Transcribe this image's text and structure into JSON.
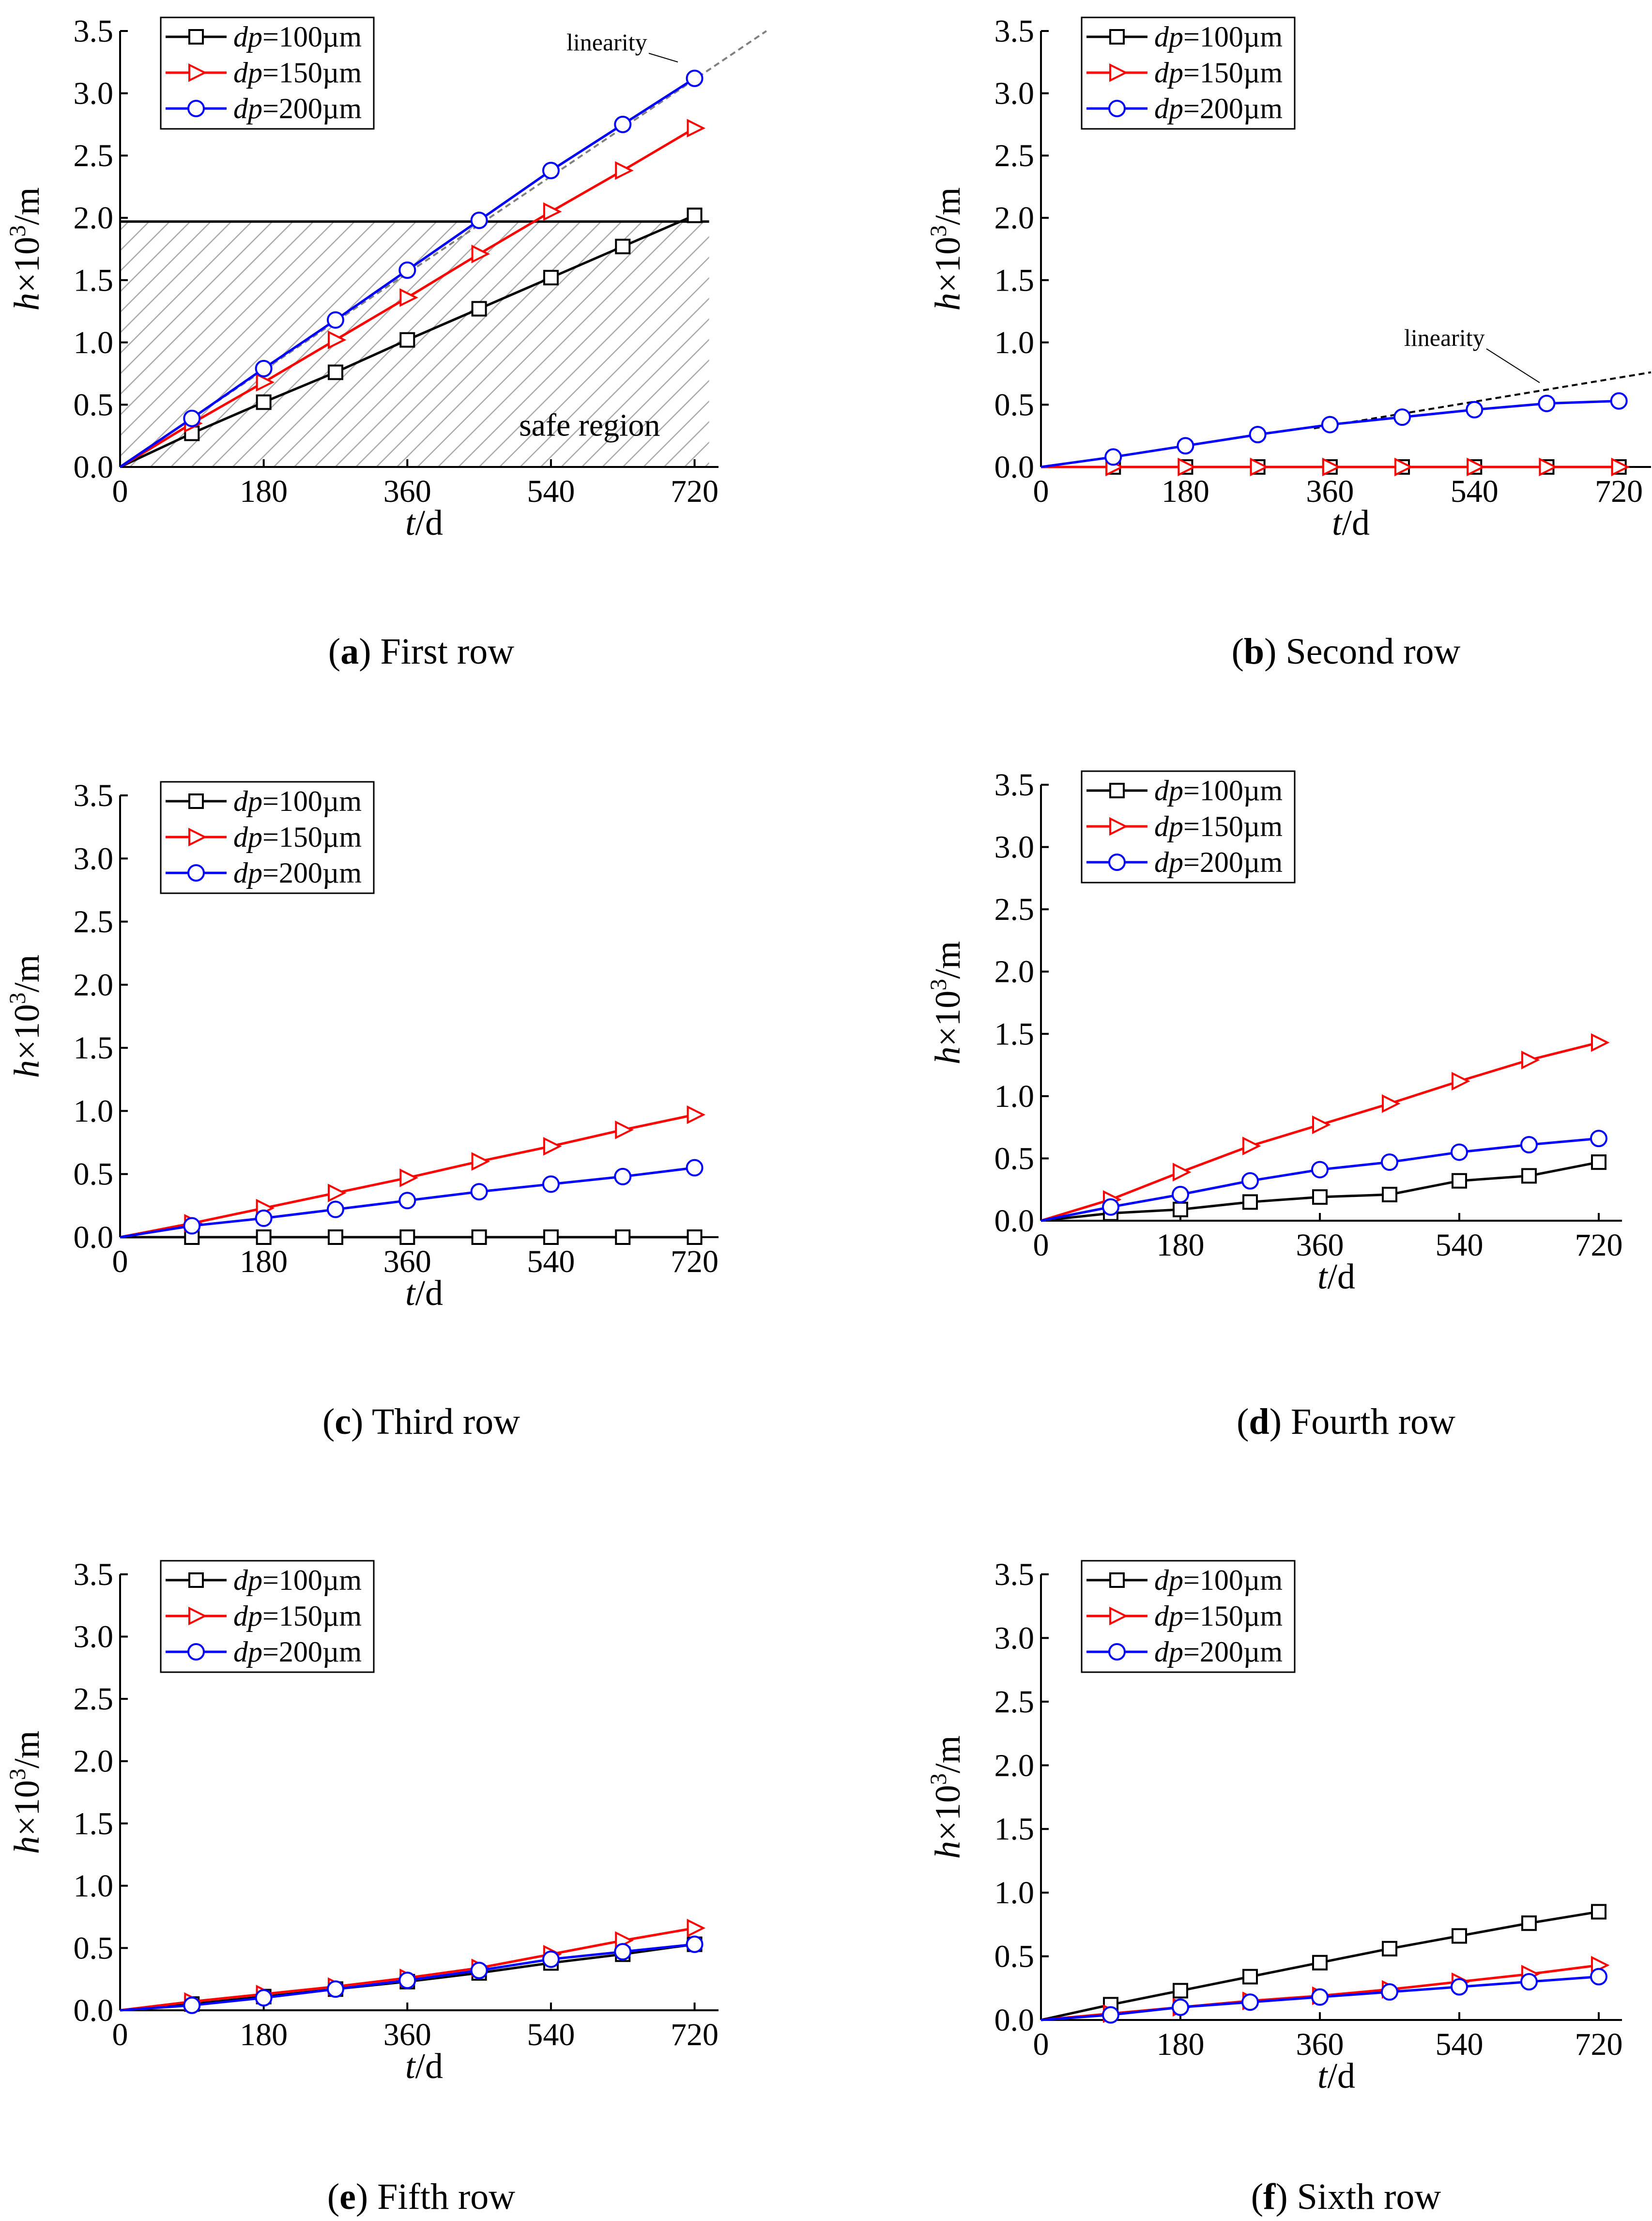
{
  "colors": {
    "s100": "#000000",
    "s150": "#ff0000",
    "s200": "#0000ff",
    "guide": "#808080",
    "hatch": "#a9a9a9"
  },
  "chart_data": [
    {
      "type": "line",
      "caption_letter": "a",
      "caption_text": "First row",
      "xlabel_italic": "t",
      "xlabel_rest": "/d",
      "ylabel_italic": "h",
      "ylabel_rest": "×10",
      "ylabel_sup": "3",
      "ylabel_tail": "/m",
      "xlim": [
        0,
        750
      ],
      "ylim": [
        0,
        3.5
      ],
      "xticks": [
        "0",
        "180",
        "360",
        "540",
        "720"
      ],
      "yticks": [
        "0.0",
        "0.5",
        "1.0",
        "1.5",
        "2.0",
        "2.5",
        "3.0",
        "3.5"
      ],
      "x": [
        0,
        90,
        180,
        270,
        360,
        450,
        540,
        630,
        720
      ],
      "series": [
        {
          "name": "dp=100µm",
          "legend_italic": "dp",
          "legend_rest": "=100µm",
          "marker": "square",
          "color_key": "s100",
          "values": [
            0,
            0.27,
            0.52,
            0.76,
            1.02,
            1.27,
            1.52,
            1.77,
            2.02
          ]
        },
        {
          "name": "dp=150µm",
          "legend_italic": "dp",
          "legend_rest": "=150µm",
          "marker": "triangle",
          "color_key": "s150",
          "values": [
            0,
            0.35,
            0.68,
            1.02,
            1.36,
            1.71,
            2.05,
            2.38,
            2.72
          ]
        },
        {
          "name": "dp=200µm",
          "legend_italic": "dp",
          "legend_rest": "=200µm",
          "marker": "circle",
          "color_key": "s200",
          "values": [
            0,
            0.39,
            0.79,
            1.18,
            1.58,
            1.98,
            2.38,
            2.75,
            3.12
          ]
        }
      ],
      "threshold": 1.97,
      "region_label": "safe region",
      "guide_line": {
        "label": "linearity",
        "from": [
          0,
          0
        ],
        "to": [
          810,
          3.5
        ],
        "dash": "grey"
      }
    },
    {
      "type": "line",
      "caption_letter": "b",
      "caption_text": "Second row",
      "xlabel_italic": "t",
      "xlabel_rest": "/d",
      "ylabel_italic": "h",
      "ylabel_rest": "×10",
      "ylabel_sup": "3",
      "ylabel_tail": "/m",
      "xlim": [
        0,
        760
      ],
      "ylim": [
        0,
        3.5
      ],
      "xticks": [
        "0",
        "180",
        "360",
        "540",
        "720"
      ],
      "yticks": [
        "0.0",
        "0.5",
        "1.0",
        "1.5",
        "2.0",
        "2.5",
        "3.0",
        "3.5"
      ],
      "x": [
        0,
        90,
        180,
        270,
        360,
        450,
        540,
        630,
        720
      ],
      "series": [
        {
          "name": "dp=100µm",
          "legend_italic": "dp",
          "legend_rest": "=100µm",
          "marker": "square",
          "color_key": "s100",
          "values": [
            0,
            0,
            0,
            0,
            0,
            0,
            0,
            0,
            0
          ]
        },
        {
          "name": "dp=150µm",
          "legend_italic": "dp",
          "legend_rest": "=150µm",
          "marker": "triangle",
          "color_key": "s150",
          "values": [
            0,
            0,
            0,
            0,
            0,
            0,
            0,
            0,
            0
          ]
        },
        {
          "name": "dp=200µm",
          "legend_italic": "dp",
          "legend_rest": "=200µm",
          "marker": "circle",
          "color_key": "s200",
          "values": [
            0,
            0.08,
            0.17,
            0.26,
            0.34,
            0.4,
            0.46,
            0.51,
            0.53
          ]
        }
      ],
      "guide_line": {
        "label": "linearity",
        "from": [
          340,
          0.31
        ],
        "to": [
          760,
          0.76
        ],
        "dash": "black"
      }
    },
    {
      "type": "line",
      "caption_letter": "c",
      "caption_text": "Third row",
      "xlabel_italic": "t",
      "xlabel_rest": "/d",
      "ylabel_italic": "h",
      "ylabel_rest": "×10",
      "ylabel_sup": "3",
      "ylabel_tail": "/m",
      "xlim": [
        0,
        750
      ],
      "ylim": [
        0,
        3.5
      ],
      "xticks": [
        "0",
        "180",
        "360",
        "540",
        "720"
      ],
      "yticks": [
        "0.0",
        "0.5",
        "1.0",
        "1.5",
        "2.0",
        "2.5",
        "3.0",
        "3.5"
      ],
      "x": [
        0,
        90,
        180,
        270,
        360,
        450,
        540,
        630,
        720
      ],
      "series": [
        {
          "name": "dp=100µm",
          "legend_italic": "dp",
          "legend_rest": "=100µm",
          "marker": "square",
          "color_key": "s100",
          "values": [
            0,
            0,
            0,
            0,
            0,
            0,
            0,
            0,
            0
          ]
        },
        {
          "name": "dp=150µm",
          "legend_italic": "dp",
          "legend_rest": "=150µm",
          "marker": "triangle",
          "color_key": "s150",
          "values": [
            0,
            0.11,
            0.23,
            0.35,
            0.47,
            0.6,
            0.72,
            0.85,
            0.97
          ]
        },
        {
          "name": "dp=200µm",
          "legend_italic": "dp",
          "legend_rest": "=200µm",
          "marker": "circle",
          "color_key": "s200",
          "values": [
            0,
            0.09,
            0.15,
            0.22,
            0.29,
            0.36,
            0.42,
            0.48,
            0.55
          ]
        }
      ]
    },
    {
      "type": "line",
      "caption_letter": "d",
      "caption_text": "Fourth row",
      "xlabel_italic": "t",
      "xlabel_rest": "/d",
      "ylabel_italic": "h",
      "ylabel_rest": "×10",
      "ylabel_sup": "3",
      "ylabel_tail": "/m",
      "xlim": [
        0,
        750
      ],
      "ylim": [
        0,
        3.5
      ],
      "xticks": [
        "0",
        "180",
        "360",
        "540",
        "720"
      ],
      "yticks": [
        "0.0",
        "0.5",
        "1.0",
        "1.5",
        "2.0",
        "2.5",
        "3.0",
        "3.5"
      ],
      "x": [
        0,
        90,
        180,
        270,
        360,
        450,
        540,
        630,
        720
      ],
      "series": [
        {
          "name": "dp=100µm",
          "legend_italic": "dp",
          "legend_rest": "=100µm",
          "marker": "square",
          "color_key": "s100",
          "values": [
            0,
            0.06,
            0.09,
            0.15,
            0.19,
            0.21,
            0.32,
            0.36,
            0.47
          ]
        },
        {
          "name": "dp=150µm",
          "legend_italic": "dp",
          "legend_rest": "=150µm",
          "marker": "triangle",
          "color_key": "s150",
          "values": [
            0,
            0.17,
            0.39,
            0.6,
            0.77,
            0.94,
            1.12,
            1.29,
            1.43
          ]
        },
        {
          "name": "dp=200µm",
          "legend_italic": "dp",
          "legend_rest": "=200µm",
          "marker": "circle",
          "color_key": "s200",
          "values": [
            0,
            0.11,
            0.21,
            0.32,
            0.41,
            0.47,
            0.55,
            0.61,
            0.66
          ]
        }
      ]
    },
    {
      "type": "line",
      "caption_letter": "e",
      "caption_text": "Fifth row",
      "xlabel_italic": "t",
      "xlabel_rest": "/d",
      "ylabel_italic": "h",
      "ylabel_rest": "×10",
      "ylabel_sup": "3",
      "ylabel_tail": "/m",
      "xlim": [
        0,
        750
      ],
      "ylim": [
        0,
        3.5
      ],
      "xticks": [
        "0",
        "180",
        "360",
        "540",
        "720"
      ],
      "yticks": [
        "0.0",
        "0.5",
        "1.0",
        "1.5",
        "2.0",
        "2.5",
        "3.0",
        "3.5"
      ],
      "x": [
        0,
        90,
        180,
        270,
        360,
        450,
        540,
        630,
        720
      ],
      "series": [
        {
          "name": "dp=100µm",
          "legend_italic": "dp",
          "legend_rest": "=100µm",
          "marker": "square",
          "color_key": "s100",
          "values": [
            0,
            0.05,
            0.11,
            0.17,
            0.23,
            0.3,
            0.38,
            0.45,
            0.53
          ]
        },
        {
          "name": "dp=150µm",
          "legend_italic": "dp",
          "legend_rest": "=150µm",
          "marker": "triangle",
          "color_key": "s150",
          "values": [
            0,
            0.07,
            0.13,
            0.19,
            0.26,
            0.34,
            0.45,
            0.56,
            0.66
          ]
        },
        {
          "name": "dp=200µm",
          "legend_italic": "dp",
          "legend_rest": "=200µm",
          "marker": "circle",
          "color_key": "s200",
          "values": [
            0,
            0.04,
            0.1,
            0.17,
            0.24,
            0.32,
            0.41,
            0.47,
            0.53
          ]
        }
      ]
    },
    {
      "type": "line",
      "caption_letter": "f",
      "caption_text": "Sixth row",
      "xlabel_italic": "t",
      "xlabel_rest": "/d",
      "ylabel_italic": "h",
      "ylabel_rest": "×10",
      "ylabel_sup": "3",
      "ylabel_tail": "/m",
      "xlim": [
        0,
        750
      ],
      "ylim": [
        0,
        3.5
      ],
      "xticks": [
        "0",
        "180",
        "360",
        "540",
        "720"
      ],
      "yticks": [
        "0.0",
        "0.5",
        "1.0",
        "1.5",
        "2.0",
        "2.5",
        "3.0",
        "3.5"
      ],
      "x": [
        0,
        90,
        180,
        270,
        360,
        450,
        540,
        630,
        720
      ],
      "series": [
        {
          "name": "dp=100µm",
          "legend_italic": "dp",
          "legend_rest": "=100µm",
          "marker": "square",
          "color_key": "s100",
          "values": [
            0,
            0.12,
            0.23,
            0.34,
            0.45,
            0.56,
            0.66,
            0.76,
            0.85
          ]
        },
        {
          "name": "dp=150µm",
          "legend_italic": "dp",
          "legend_rest": "=150µm",
          "marker": "triangle",
          "color_key": "s150",
          "values": [
            0,
            0.05,
            0.1,
            0.15,
            0.19,
            0.24,
            0.3,
            0.36,
            0.43
          ]
        },
        {
          "name": "dp=200µm",
          "legend_italic": "dp",
          "legend_rest": "=200µm",
          "marker": "circle",
          "color_key": "s200",
          "values": [
            0,
            0.04,
            0.1,
            0.14,
            0.18,
            0.22,
            0.26,
            0.3,
            0.34
          ]
        }
      ]
    }
  ]
}
